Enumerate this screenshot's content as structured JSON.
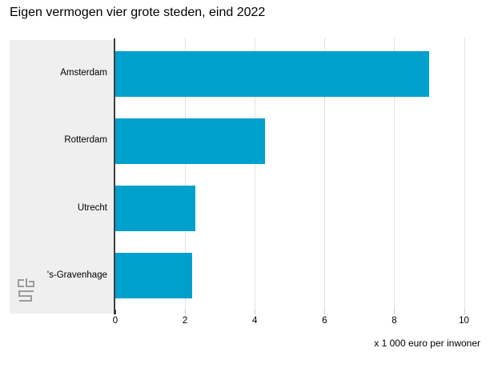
{
  "chart_data": {
    "type": "bar",
    "orientation": "horizontal",
    "title": "Eigen vermogen vier grote steden, eind 2022",
    "categories": [
      "Amsterdam",
      "Rotterdam",
      "Utrecht",
      "'s-Gravenhage"
    ],
    "values": [
      9.0,
      4.3,
      2.3,
      2.2
    ],
    "xlabel": "x 1 000 euro per inwoner",
    "xticks": [
      0,
      2,
      4,
      6,
      8,
      10
    ],
    "xlim": [
      0,
      10.7
    ],
    "grid": "vertical-gridlines-on",
    "legend": "none",
    "ylabel": ""
  },
  "branding": {
    "logo_name": "cbs-logo"
  },
  "colors": {
    "bar": "#00a0cd",
    "label_panel_bg": "#efefef",
    "gridline": "#e3e3e3",
    "axis_line": "#3f3f3f",
    "tick": "#c9c9c9",
    "logo_gray": "#9b9b9b",
    "text": "#000000",
    "background": "#ffffff"
  }
}
